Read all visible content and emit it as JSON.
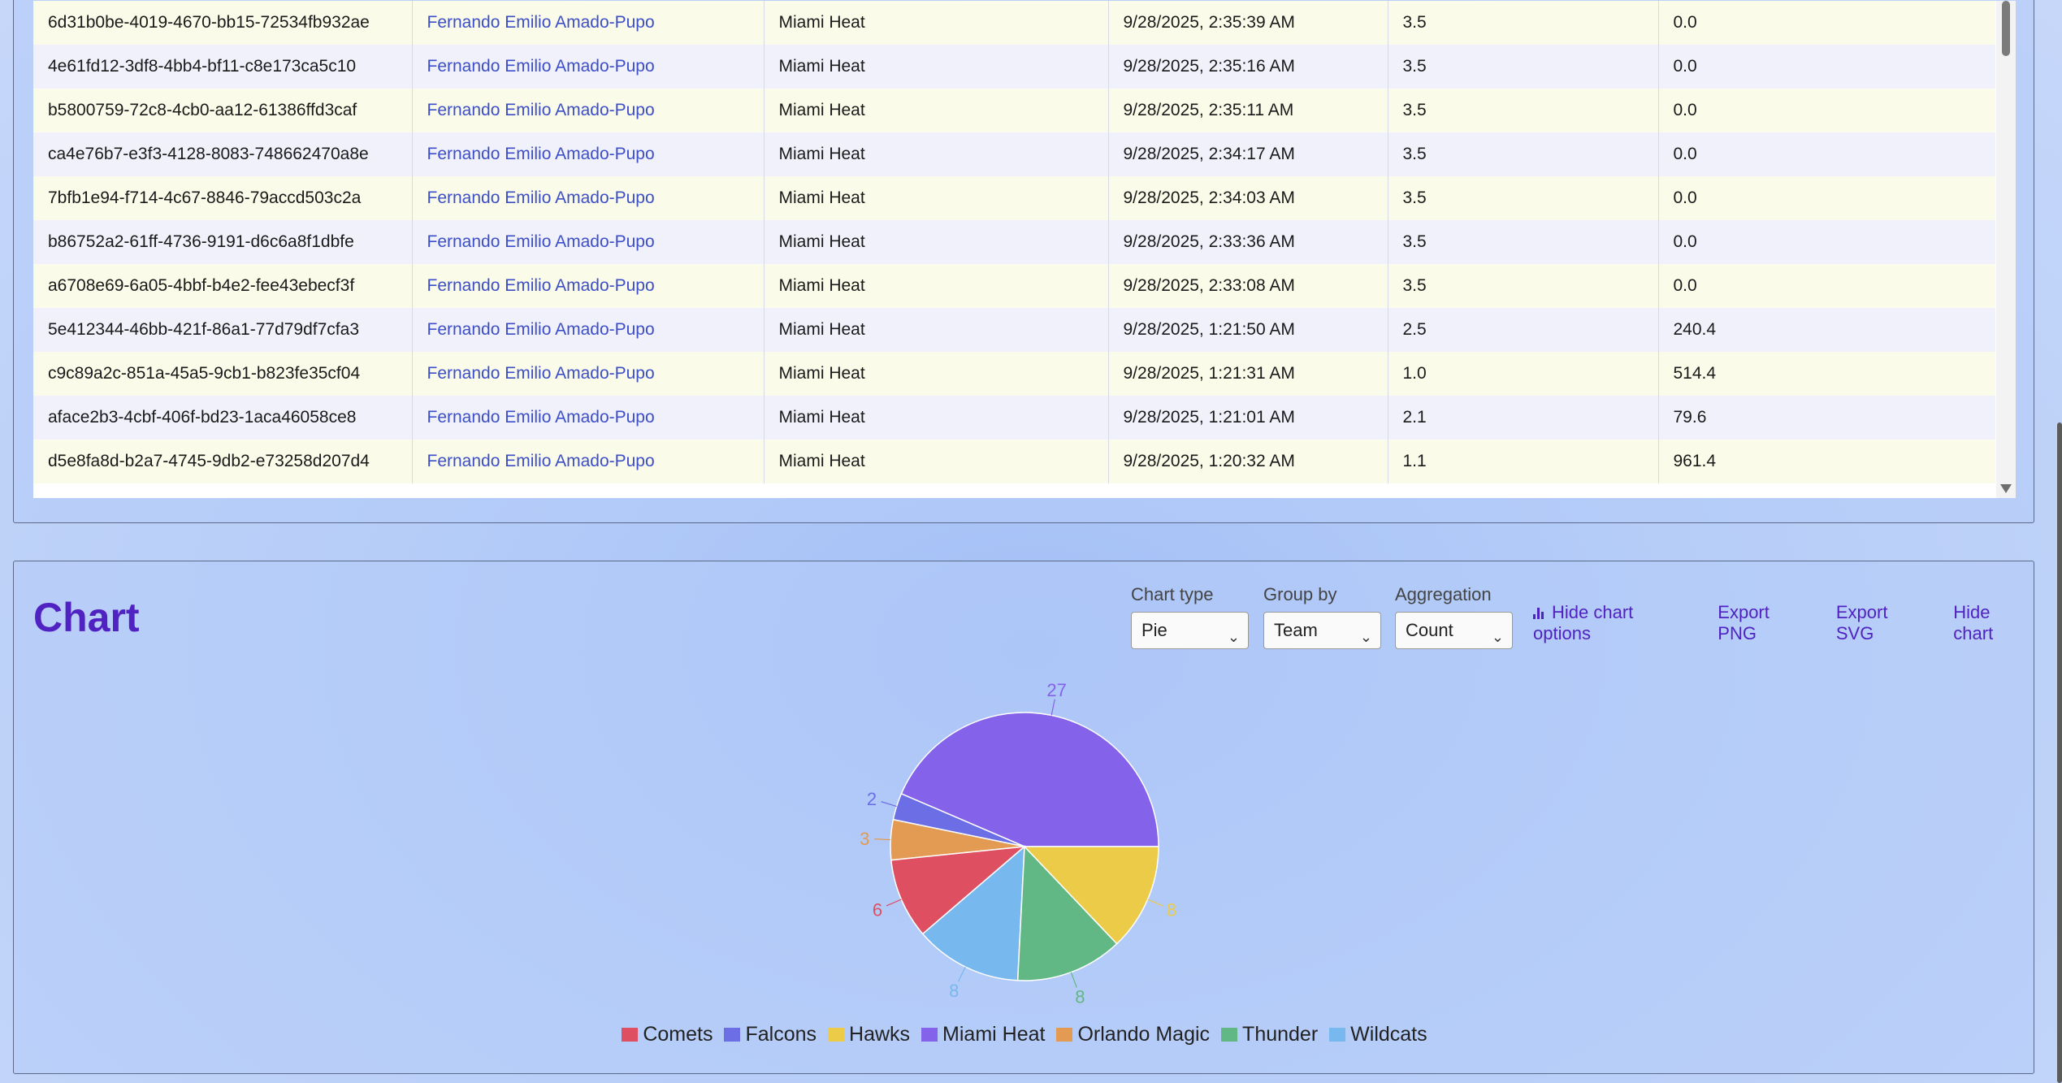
{
  "table": {
    "rows": [
      {
        "id": "6d31b0be-4019-4670-bb15-72534fb932ae",
        "player": "Fernando Emilio Amado-Pupo",
        "team": "Miami Heat",
        "date": "9/28/2025, 2:35:39 AM",
        "value1": "3.5",
        "value2": "0.0"
      },
      {
        "id": "4e61fd12-3df8-4bb4-bf11-c8e173ca5c10",
        "player": "Fernando Emilio Amado-Pupo",
        "team": "Miami Heat",
        "date": "9/28/2025, 2:35:16 AM",
        "value1": "3.5",
        "value2": "0.0"
      },
      {
        "id": "b5800759-72c8-4cb0-aa12-61386ffd3caf",
        "player": "Fernando Emilio Amado-Pupo",
        "team": "Miami Heat",
        "date": "9/28/2025, 2:35:11 AM",
        "value1": "3.5",
        "value2": "0.0"
      },
      {
        "id": "ca4e76b7-e3f3-4128-8083-748662470a8e",
        "player": "Fernando Emilio Amado-Pupo",
        "team": "Miami Heat",
        "date": "9/28/2025, 2:34:17 AM",
        "value1": "3.5",
        "value2": "0.0"
      },
      {
        "id": "7bfb1e94-f714-4c67-8846-79accd503c2a",
        "player": "Fernando Emilio Amado-Pupo",
        "team": "Miami Heat",
        "date": "9/28/2025, 2:34:03 AM",
        "value1": "3.5",
        "value2": "0.0"
      },
      {
        "id": "b86752a2-61ff-4736-9191-d6c6a8f1dbfe",
        "player": "Fernando Emilio Amado-Pupo",
        "team": "Miami Heat",
        "date": "9/28/2025, 2:33:36 AM",
        "value1": "3.5",
        "value2": "0.0"
      },
      {
        "id": "a6708e69-6a05-4bbf-b4e2-fee43ebecf3f",
        "player": "Fernando Emilio Amado-Pupo",
        "team": "Miami Heat",
        "date": "9/28/2025, 2:33:08 AM",
        "value1": "3.5",
        "value2": "0.0"
      },
      {
        "id": "5e412344-46bb-421f-86a1-77d79df7cfa3",
        "player": "Fernando Emilio Amado-Pupo",
        "team": "Miami Heat",
        "date": "9/28/2025, 1:21:50 AM",
        "value1": "2.5",
        "value2": "240.4"
      },
      {
        "id": "c9c89a2c-851a-45a5-9cb1-b823fe35cf04",
        "player": "Fernando Emilio Amado-Pupo",
        "team": "Miami Heat",
        "date": "9/28/2025, 1:21:31 AM",
        "value1": "1.0",
        "value2": "514.4"
      },
      {
        "id": "aface2b3-4cbf-406f-bd23-1aca46058ce8",
        "player": "Fernando Emilio Amado-Pupo",
        "team": "Miami Heat",
        "date": "9/28/2025, 1:21:01 AM",
        "value1": "2.1",
        "value2": "79.6"
      },
      {
        "id": "d5e8fa8d-b2a7-4745-9db2-e73258d207d4",
        "player": "Fernando Emilio Amado-Pupo",
        "team": "Miami Heat",
        "date": "9/28/2025, 1:20:32 AM",
        "value1": "1.1",
        "value2": "961.4"
      }
    ]
  },
  "chart_panel": {
    "title": "Chart",
    "chart_type": {
      "label": "Chart type",
      "value": "Pie"
    },
    "group_by": {
      "label": "Group by",
      "value": "Team"
    },
    "aggregation": {
      "label": "Aggregation",
      "value": "Count"
    },
    "hide_options": "Hide chart options",
    "export_png": "Export PNG",
    "export_svg": "Export SVG",
    "hide_chart": "Hide chart"
  },
  "chart_data": {
    "type": "pie",
    "categories": [
      "Miami Heat",
      "Falcons",
      "Orlando Magic",
      "Comets",
      "Wildcats",
      "Thunder",
      "Hawks"
    ],
    "values": [
      27,
      2,
      3,
      6,
      8,
      8,
      8
    ],
    "colors": [
      "#8562ea",
      "#6c6ee6",
      "#e39a52",
      "#dd4f61",
      "#77b8ef",
      "#62b884",
      "#ebcb48"
    ],
    "legend": [
      "Comets",
      "Falcons",
      "Hawks",
      "Miami Heat",
      "Orlando Magic",
      "Thunder",
      "Wildcats"
    ],
    "legend_colors": [
      "#dd4f61",
      "#6c6ee6",
      "#ebcb48",
      "#8562ea",
      "#e39a52",
      "#62b884",
      "#77b8ef"
    ],
    "legend_position": "bottom"
  }
}
